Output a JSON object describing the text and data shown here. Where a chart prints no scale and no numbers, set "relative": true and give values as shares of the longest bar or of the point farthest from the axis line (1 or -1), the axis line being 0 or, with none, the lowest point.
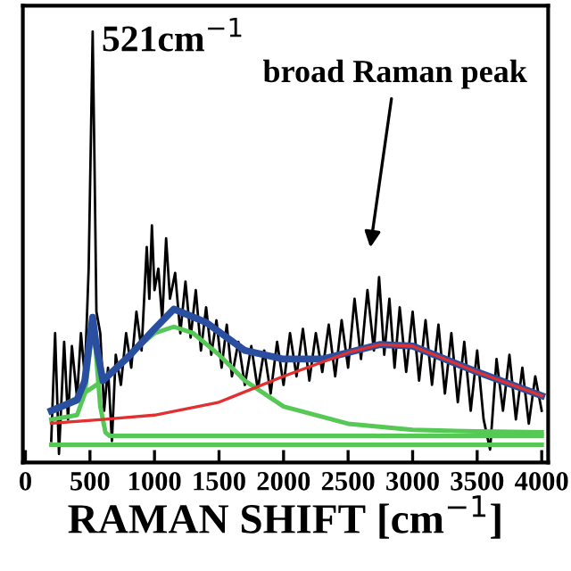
{
  "chart_data": {
    "type": "line",
    "relative": true,
    "xlabel": "RAMAN SHIFT [cm$^{−1}$]",
    "xlim": [
      -20,
      4050
    ],
    "xticks": [
      0,
      500,
      1000,
      1500,
      2000,
      2500,
      3000,
      3500,
      4000
    ],
    "grid": false,
    "legend": false,
    "marker": "none",
    "line_style": "solid",
    "annotations": [
      "521cm$^{−1}$",
      "broad Raman peak"
    ],
    "series": [
      {
        "color": "#000000",
        "x": [
          200,
          230,
          260,
          300,
          330,
          360,
          400,
          430,
          460,
          490,
          510,
          521,
          535,
          550,
          580,
          610,
          640,
          670,
          700,
          740,
          780,
          820,
          860,
          900,
          940,
          960,
          980,
          1000,
          1030,
          1060,
          1090,
          1120,
          1160,
          1200,
          1240,
          1280,
          1320,
          1360,
          1400,
          1440,
          1480,
          1520,
          1560,
          1600,
          1650,
          1700,
          1750,
          1800,
          1850,
          1900,
          1950,
          2000,
          2050,
          2100,
          2150,
          2200,
          2250,
          2300,
          2350,
          2400,
          2450,
          2500,
          2550,
          2600,
          2650,
          2700,
          2740,
          2780,
          2820,
          2860,
          2900,
          2950,
          3000,
          3050,
          3100,
          3150,
          3200,
          3250,
          3300,
          3350,
          3400,
          3450,
          3500,
          3550,
          3600,
          3650,
          3700,
          3750,
          3800,
          3850,
          3900,
          3950,
          4000
        ],
        "values": [
          0.05,
          0.3,
          0.02,
          0.28,
          0.1,
          0.27,
          0.15,
          0.3,
          0.2,
          0.45,
          0.8,
          1.0,
          0.7,
          0.35,
          0.3,
          0.12,
          0.22,
          0.05,
          0.25,
          0.18,
          0.3,
          0.22,
          0.35,
          0.26,
          0.5,
          0.38,
          0.55,
          0.4,
          0.45,
          0.33,
          0.52,
          0.38,
          0.44,
          0.3,
          0.42,
          0.29,
          0.4,
          0.26,
          0.36,
          0.25,
          0.33,
          0.22,
          0.32,
          0.2,
          0.28,
          0.18,
          0.27,
          0.17,
          0.26,
          0.16,
          0.28,
          0.18,
          0.3,
          0.2,
          0.31,
          0.19,
          0.3,
          0.21,
          0.32,
          0.2,
          0.33,
          0.22,
          0.38,
          0.24,
          0.4,
          0.26,
          0.43,
          0.25,
          0.38,
          0.22,
          0.36,
          0.21,
          0.35,
          0.19,
          0.33,
          0.18,
          0.32,
          0.16,
          0.3,
          0.14,
          0.28,
          0.12,
          0.26,
          0.1,
          0.03,
          0.24,
          0.12,
          0.25,
          0.1,
          0.22,
          0.09,
          0.2,
          0.12
        ]
      },
      {
        "color": "#55c855",
        "x": [
          200,
          4000
        ],
        "values": [
          0.041,
          0.041
        ]
      },
      {
        "color": "#55c855",
        "x": [
          200,
          400,
          460,
          500,
          521,
          545,
          580,
          620,
          650,
          4000
        ],
        "values": [
          0.1,
          0.11,
          0.16,
          0.26,
          0.31,
          0.26,
          0.13,
          0.07,
          0.062,
          0.062
        ]
      },
      {
        "color": "#55c855",
        "x": [
          200,
          400,
          600,
          800,
          1000,
          1150,
          1300,
          1500,
          1700,
          2000,
          2500,
          3000,
          3500,
          4000
        ],
        "values": [
          0.12,
          0.15,
          0.19,
          0.25,
          0.3,
          0.315,
          0.3,
          0.25,
          0.19,
          0.13,
          0.09,
          0.076,
          0.072,
          0.07
        ]
      },
      {
        "color": "#e03030",
        "x": [
          200,
          600,
          1000,
          1500,
          2000,
          2500,
          2750,
          3000,
          3500,
          4000
        ],
        "values": [
          0.091,
          0.1,
          0.11,
          0.14,
          0.2,
          0.255,
          0.274,
          0.27,
          0.21,
          0.155
        ]
      },
      {
        "color": "#2a4fa0",
        "x": [
          200,
          400,
          460,
          500,
          521,
          545,
          600,
          800,
          1000,
          1150,
          1400,
          1700,
          2000,
          2300,
          2750,
          3000,
          3500,
          4000
        ],
        "values": [
          0.12,
          0.145,
          0.19,
          0.29,
          0.337,
          0.28,
          0.19,
          0.246,
          0.31,
          0.356,
          0.325,
          0.26,
          0.24,
          0.24,
          0.274,
          0.27,
          0.21,
          0.155
        ]
      }
    ]
  }
}
